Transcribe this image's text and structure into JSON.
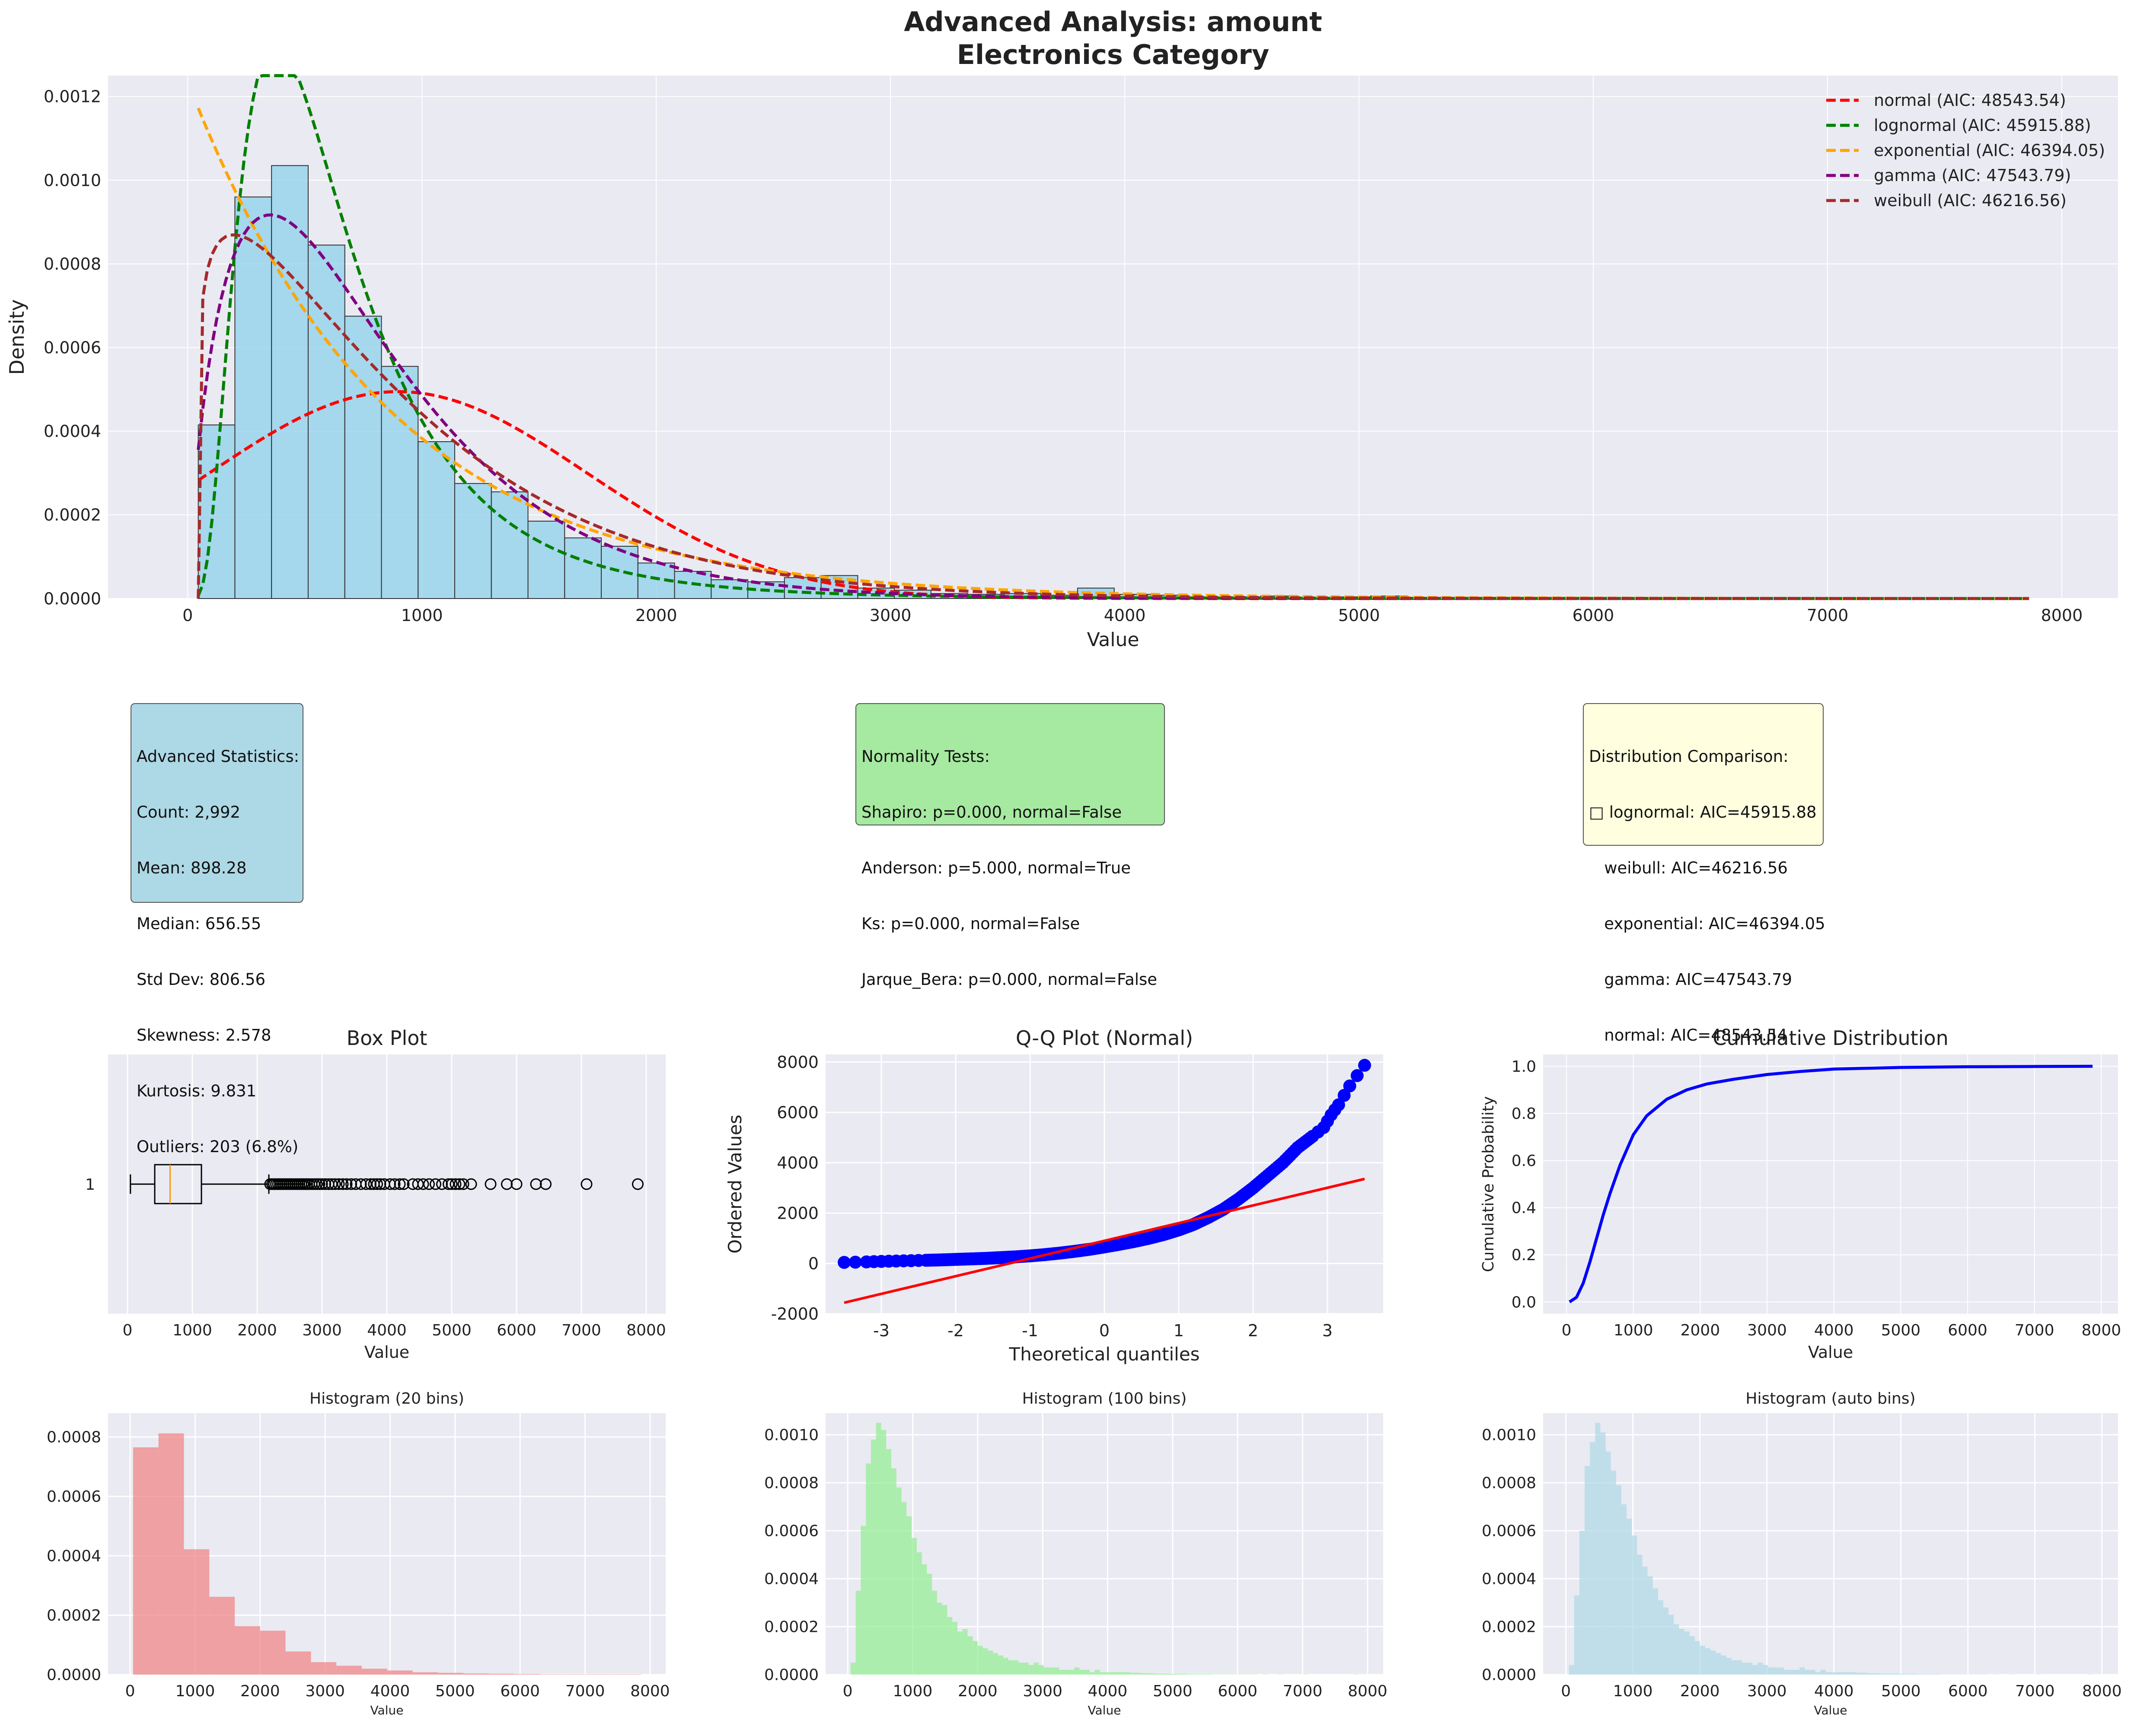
{
  "colors": {
    "panel_bg": "#eaeaf2",
    "hist_main": "#87ceeb",
    "hist_20": "#f08080",
    "hist_100": "#90ee90",
    "hist_auto": "#add8e6",
    "qq_points": "#0000ff",
    "qq_line": "#ff0000",
    "cdf_line": "#0000ff"
  },
  "chart_data": [
    {
      "id": "main",
      "type": "bar",
      "title": "Advanced Analysis: amount",
      "subtitle": "Electronics Category",
      "xlabel": "Value",
      "ylabel": "Density",
      "xlim": [
        -340,
        8240
      ],
      "ylim": [
        0,
        0.00125
      ],
      "xticks": [
        0,
        1000,
        2000,
        3000,
        4000,
        5000,
        6000,
        7000,
        8000
      ],
      "yticks": [
        0,
        0.0002,
        0.0004,
        0.0006,
        0.0008,
        0.001,
        0.0012
      ],
      "ytick_labels": [
        "0.0000",
        "0.0002",
        "0.0004",
        "0.0006",
        "0.0008",
        "0.0010",
        "0.0012"
      ],
      "grid": true,
      "legend_position": "top-right",
      "bin_start": 45,
      "bin_width": 156.4,
      "values": [
        0.000415,
        0.00096,
        0.001035,
        0.000845,
        0.000675,
        0.000555,
        0.000375,
        0.000275,
        0.000255,
        0.000185,
        0.000145,
        0.000125,
        8.5e-05,
        6.5e-05,
        4.5e-05,
        4e-05,
        5e-05,
        5.5e-05,
        2.5e-05,
        2e-05,
        1.2e-05,
        1e-05,
        1.2e-05,
        8e-06,
        2.5e-05,
        1e-05,
        8e-06,
        4e-06,
        4e-06,
        6e-06,
        3e-06,
        4e-06,
        6e-06,
        2e-06,
        1e-06,
        1e-06,
        1e-06,
        1e-06,
        1e-06,
        1e-06,
        0.0,
        0.0,
        0.0,
        0.0,
        0.0,
        0.0,
        0.0,
        0.0,
        1e-06,
        0.0
      ],
      "series": [
        {
          "name": "normal (AIC: 48543.54)",
          "color": "#ff0000",
          "dist": "normal",
          "params": {
            "mu": 898.28,
            "sigma": 806.56
          }
        },
        {
          "name": "lognormal (AIC: 45915.88)",
          "color": "#008000",
          "dist": "lognormal",
          "params": {
            "mu": 6.35,
            "sigma": 0.65
          }
        },
        {
          "name": "exponential (AIC: 46394.05)",
          "color": "#ffa500",
          "dist": "exponential",
          "params": {
            "loc": 45,
            "scale": 853
          }
        },
        {
          "name": "gamma (AIC: 47543.79)",
          "color": "#800080",
          "dist": "gamma",
          "params": {
            "k": 1.8,
            "theta": 440,
            "loc": 0
          }
        },
        {
          "name": "weibull (AIC: 46216.56)",
          "color": "#a52a2a",
          "dist": "weibull",
          "params": {
            "k": 1.15,
            "lambda": 890,
            "loc": 45
          }
        }
      ],
      "curve_xmax": 7860
    },
    {
      "id": "box",
      "type": "box",
      "title": "Box Plot",
      "xlabel": "Value",
      "ytick_label": "1",
      "xlim": [
        -300,
        8300
      ],
      "xticks": [
        0,
        1000,
        2000,
        3000,
        4000,
        5000,
        6000,
        7000,
        8000
      ],
      "whisker_low": 45,
      "q1": 420,
      "median": 656.55,
      "q3": 1140,
      "whisker_high": 2180,
      "outliers": [
        2200,
        2230,
        2260,
        2290,
        2320,
        2350,
        2380,
        2410,
        2440,
        2470,
        2500,
        2530,
        2560,
        2590,
        2620,
        2650,
        2680,
        2710,
        2740,
        2770,
        2800,
        2840,
        2880,
        2920,
        2960,
        3000,
        3050,
        3100,
        3150,
        3200,
        3260,
        3320,
        3380,
        3450,
        3520,
        3600,
        3680,
        3750,
        3800,
        3850,
        3900,
        3960,
        4050,
        4120,
        4200,
        4260,
        4400,
        4480,
        4560,
        4650,
        4750,
        4850,
        4950,
        5000,
        5060,
        5120,
        5180,
        5300,
        5600,
        5850,
        6000,
        6300,
        6450,
        7080,
        7870
      ]
    },
    {
      "id": "qq",
      "type": "scatter",
      "title": "Q-Q Plot (Normal)",
      "xlabel": "Theoretical quantiles",
      "ylabel": "Ordered Values",
      "xlim": [
        -3.75,
        3.75
      ],
      "ylim": [
        -2000,
        8300
      ],
      "xticks": [
        -3,
        -2,
        -1,
        0,
        1,
        2,
        3
      ],
      "yticks": [
        -2000,
        0,
        2000,
        4000,
        6000,
        8000
      ],
      "line": {
        "x": [
          -3.5,
          3.5
        ],
        "y": [
          -1560,
          3357
        ]
      },
      "points": [
        [
          -3.5,
          40
        ],
        [
          -3.2,
          60
        ],
        [
          -3.0,
          80
        ],
        [
          -2.8,
          95
        ],
        [
          -2.6,
          110
        ],
        [
          -2.4,
          125
        ],
        [
          -2.2,
          140
        ],
        [
          -2.0,
          160
        ],
        [
          -1.8,
          180
        ],
        [
          -1.6,
          200
        ],
        [
          -1.4,
          230
        ],
        [
          -1.2,
          260
        ],
        [
          -1.0,
          300
        ],
        [
          -0.8,
          350
        ],
        [
          -0.6,
          410
        ],
        [
          -0.4,
          480
        ],
        [
          -0.2,
          560
        ],
        [
          0.0,
          656
        ],
        [
          0.2,
          760
        ],
        [
          0.4,
          870
        ],
        [
          0.6,
          1000
        ],
        [
          0.8,
          1150
        ],
        [
          1.0,
          1330
        ],
        [
          1.2,
          1550
        ],
        [
          1.4,
          1830
        ],
        [
          1.6,
          2150
        ],
        [
          1.8,
          2550
        ],
        [
          2.0,
          3000
        ],
        [
          2.2,
          3500
        ],
        [
          2.4,
          4000
        ],
        [
          2.6,
          4600
        ],
        [
          2.8,
          5050
        ],
        [
          2.95,
          5400
        ],
        [
          3.05,
          5900
        ],
        [
          3.15,
          6300
        ],
        [
          3.3,
          7050
        ],
        [
          3.5,
          7870
        ]
      ]
    },
    {
      "id": "cdf",
      "type": "line",
      "title": "Cumulative Distribution",
      "xlabel": "Value",
      "ylabel": "Cumulative Probability",
      "xlim": [
        -350,
        8250
      ],
      "ylim": [
        -0.05,
        1.05
      ],
      "xticks": [
        0,
        1000,
        2000,
        3000,
        4000,
        5000,
        6000,
        7000,
        8000
      ],
      "yticks": [
        0,
        0.2,
        0.4,
        0.6,
        0.8,
        1.0
      ],
      "ytick_labels": [
        "0.0",
        "0.2",
        "0.4",
        "0.6",
        "0.8",
        "1.0"
      ],
      "x": [
        45,
        150,
        250,
        350,
        450,
        550,
        650,
        800,
        1000,
        1200,
        1500,
        1800,
        2100,
        2500,
        3000,
        3500,
        4000,
        5000,
        6000,
        7000,
        7870
      ],
      "y": [
        0.0,
        0.02,
        0.08,
        0.17,
        0.27,
        0.37,
        0.46,
        0.58,
        0.71,
        0.79,
        0.86,
        0.9,
        0.925,
        0.945,
        0.965,
        0.978,
        0.988,
        0.995,
        0.998,
        0.999,
        1.0
      ]
    },
    {
      "id": "h20",
      "type": "bar",
      "title": "Histogram (20 bins)",
      "xlabel": "Value",
      "xlim": [
        -340,
        8240
      ],
      "ylim": [
        0,
        0.00088
      ],
      "xticks": [
        0,
        1000,
        2000,
        3000,
        4000,
        5000,
        6000,
        7000,
        8000
      ],
      "yticks": [
        0,
        0.0002,
        0.0004,
        0.0006,
        0.0008
      ],
      "ytick_labels": [
        "0.0000",
        "0.0002",
        "0.0004",
        "0.0006",
        "0.0008"
      ],
      "bin_start": 45,
      "bin_width": 391,
      "values": [
        0.000765,
        0.000812,
        0.000422,
        0.000262,
        0.000163,
        0.000148,
        7.8e-05,
        4.2e-05,
        3e-05,
        2e-05,
        1.4e-05,
        8e-06,
        6e-06,
        4e-06,
        3e-06,
        2e-06,
        1e-06,
        1e-06,
        1e-06,
        1e-06
      ]
    },
    {
      "id": "h100",
      "type": "bar",
      "title": "Histogram (100 bins)",
      "xlabel": "Value",
      "xlim": [
        -340,
        8240
      ],
      "ylim": [
        0,
        0.00109
      ],
      "xticks": [
        0,
        1000,
        2000,
        3000,
        4000,
        5000,
        6000,
        7000,
        8000
      ],
      "yticks": [
        0,
        0.0002,
        0.0004,
        0.0006,
        0.0008,
        0.001
      ],
      "ytick_labels": [
        "0.0000",
        "0.0002",
        "0.0004",
        "0.0006",
        "0.0008",
        "0.0010"
      ],
      "bin_start": 45,
      "bin_width": 78.25,
      "values": [
        5e-05,
        0.00035,
        0.00062,
        0.00088,
        0.00098,
        0.00105,
        0.00102,
        0.00094,
        0.00086,
        0.00078,
        0.00072,
        0.00066,
        0.00057,
        0.00051,
        0.00046,
        0.00042,
        0.00035,
        0.0003,
        0.00029,
        0.00024,
        0.00022,
        0.00018,
        0.00019,
        0.00016,
        0.00014,
        0.00012,
        0.00011,
        0.0001,
        9e-05,
        8e-05,
        7e-05,
        6e-05,
        6e-05,
        5e-05,
        5e-05,
        4e-05,
        5e-05,
        4e-05,
        3e-05,
        3e-05,
        3e-05,
        2e-05,
        2e-05,
        2e-05,
        3e-05,
        2e-05,
        2e-05,
        1e-05,
        2e-05,
        1e-05,
        1e-05,
        1e-05,
        1e-05,
        1e-05,
        1e-05,
        8e-06,
        8e-06,
        6e-06,
        6e-06,
        5e-06,
        4e-06,
        4e-06,
        4e-06,
        3e-06,
        3e-06,
        3e-06,
        2e-06,
        2e-06,
        2e-06,
        2e-06,
        2e-06,
        1e-06,
        1e-06,
        1e-06,
        1e-06,
        1e-06,
        1e-06,
        1e-06,
        1e-06,
        1e-06,
        0.0,
        1e-06,
        0.0,
        0.0,
        1e-06,
        0.0,
        0.0,
        0.0,
        0.0,
        1e-06,
        0.0,
        0.0,
        0.0,
        0.0,
        0.0,
        0.0,
        0.0,
        0.0,
        0.0,
        1e-06
      ]
    },
    {
      "id": "hauto",
      "type": "bar",
      "title": "Histogram (auto bins)",
      "xlabel": "Value",
      "xlim": [
        -340,
        8240
      ],
      "ylim": [
        0,
        0.00109
      ],
      "xticks": [
        0,
        1000,
        2000,
        3000,
        4000,
        5000,
        6000,
        7000,
        8000
      ],
      "yticks": [
        0,
        0.0002,
        0.0004,
        0.0006,
        0.0008,
        0.001
      ],
      "ytick_labels": [
        "0.0000",
        "0.0002",
        "0.0004",
        "0.0006",
        "0.0008",
        "0.0010"
      ],
      "bin_start": 45,
      "bin_width": 78.25,
      "values": [
        4e-05,
        0.00033,
        0.0006,
        0.00087,
        0.00097,
        0.00105,
        0.00101,
        0.00093,
        0.00085,
        0.00079,
        0.00071,
        0.00065,
        0.00058,
        0.0005,
        0.00045,
        0.00041,
        0.00036,
        0.00031,
        0.00028,
        0.00025,
        0.00021,
        0.00019,
        0.00018,
        0.00016,
        0.00014,
        0.00012,
        0.00011,
        0.0001,
        9e-05,
        8e-05,
        7e-05,
        6e-05,
        6e-05,
        5e-05,
        5e-05,
        4e-05,
        5e-05,
        4e-05,
        3e-05,
        3e-05,
        3e-05,
        2e-05,
        2e-05,
        2e-05,
        3e-05,
        2e-05,
        2e-05,
        1e-05,
        2e-05,
        1e-05,
        1e-05,
        1e-05,
        1e-05,
        1e-05,
        1e-05,
        8e-06,
        8e-06,
        6e-06,
        6e-06,
        5e-06,
        4e-06,
        4e-06,
        4e-06,
        3e-06,
        3e-06,
        3e-06,
        2e-06,
        2e-06,
        2e-06,
        2e-06,
        2e-06,
        1e-06,
        1e-06,
        1e-06,
        1e-06,
        1e-06,
        1e-06,
        1e-06,
        1e-06,
        1e-06,
        0.0,
        1e-06,
        0.0,
        0.0,
        1e-06,
        0.0,
        0.0,
        0.0,
        0.0,
        1e-06,
        0.0,
        0.0,
        0.0,
        0.0,
        0.0,
        0.0,
        0.0,
        0.0,
        0.0,
        1e-06
      ]
    }
  ],
  "stats_box": {
    "lines": [
      "Advanced Statistics:",
      "Count: 2,992",
      "Mean: 898.28",
      "Median: 656.55",
      "Std Dev: 806.56",
      "Skewness: 2.578",
      "Kurtosis: 9.831",
      "Outliers: 203 (6.8%)"
    ]
  },
  "normality_box": {
    "lines": [
      "Normality Tests:",
      "Shapiro: p=0.000, normal=False",
      "Anderson: p=5.000, normal=True",
      "Ks: p=0.000, normal=False",
      "Jarque_Bera: p=0.000, normal=False"
    ]
  },
  "dist_box": {
    "lines": [
      "Distribution Comparison:",
      "□ lognormal: AIC=45915.88",
      "   weibull: AIC=46216.56",
      "   exponential: AIC=46394.05",
      "   gamma: AIC=47543.79",
      "   normal: AIC=48543.54"
    ]
  }
}
